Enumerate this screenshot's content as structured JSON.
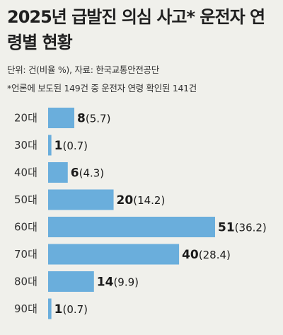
{
  "title": "2025년 급발진 의심 사고* 운전자 연령별 현황",
  "unit_line": "단위: 건(비율 %), 자료: 한국교통안전공단",
  "footnote": "*언론에 보도된 149건 중 운전자 연령 확인된 141건",
  "colors": {
    "bar": "#6aaedc",
    "background": "#f0f0eb"
  },
  "chart_data": {
    "type": "bar",
    "orientation": "horizontal",
    "title": "2025년 급발진 의심 사고* 운전자 연령별 현황",
    "categories": [
      "20대",
      "30대",
      "40대",
      "50대",
      "60대",
      "70대",
      "80대",
      "90대"
    ],
    "values": [
      8,
      1,
      6,
      20,
      51,
      40,
      14,
      1
    ],
    "percent_labels": [
      "(5.7)",
      "(0.7)",
      "(4.3)",
      "(14.2)",
      "(36.2)",
      "(28.4)",
      "(9.9)",
      "(0.7)"
    ],
    "xlim": [
      0,
      51
    ],
    "grid": false,
    "legend": "none"
  }
}
